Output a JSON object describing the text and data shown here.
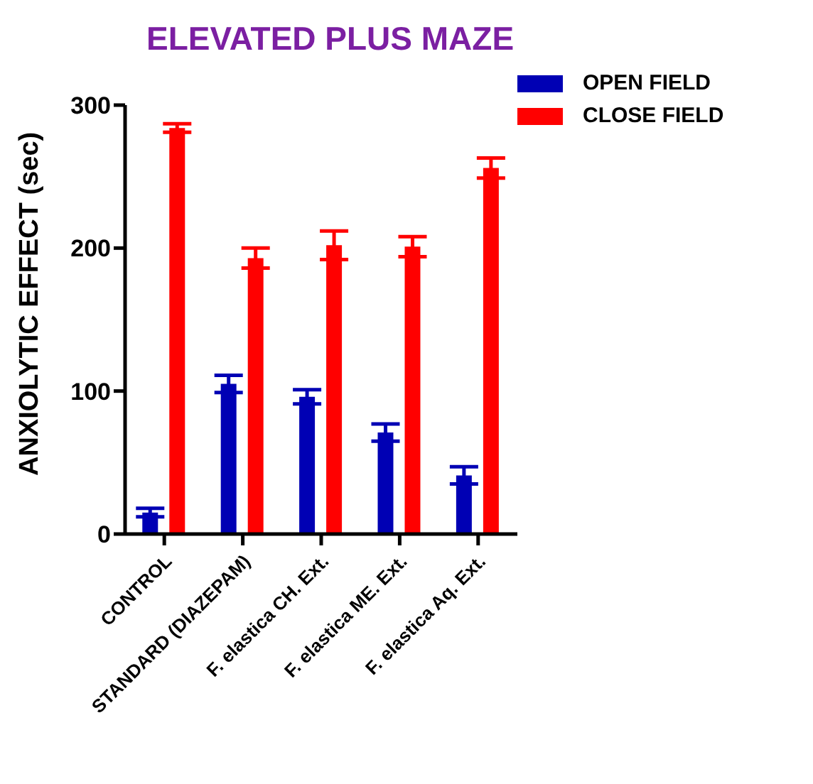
{
  "chart_data": {
    "type": "bar",
    "title": "ELEVATED PLUS MAZE",
    "ylabel": "ANXIOLYTIC EFFECT (sec)",
    "categories": [
      "CONTROL",
      "STANDARD (DIAZEPAM)",
      "F. elastica CH. Ext.",
      "F. elastica ME. Ext.",
      "F. elastica Aq. Ext."
    ],
    "series": [
      {
        "name": "OPEN FIELD",
        "color": "#0000b4",
        "values": [
          15,
          105,
          96,
          71,
          41
        ],
        "errors": [
          3,
          6,
          5,
          6,
          6
        ]
      },
      {
        "name": "CLOSE FIELD",
        "color": "#ff0000",
        "values": [
          284,
          193,
          202,
          201,
          256
        ],
        "errors": [
          3,
          7,
          10,
          7,
          7
        ]
      }
    ],
    "ylim": [
      0,
      300
    ],
    "yticks": [
      0,
      100,
      200,
      300
    ],
    "grid": false,
    "legend": "top right"
  }
}
